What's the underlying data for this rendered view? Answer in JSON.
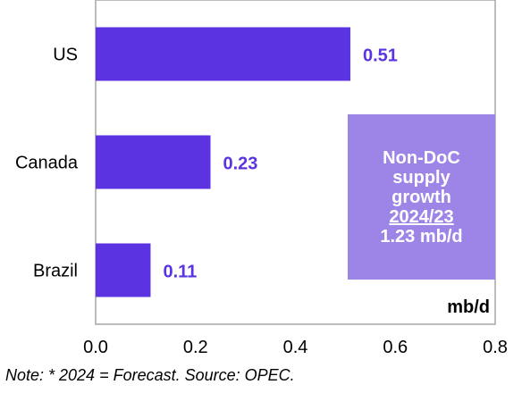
{
  "chart_data": {
    "type": "bar",
    "orientation": "horizontal",
    "categories": [
      "US",
      "Canada",
      "Brazil"
    ],
    "values": [
      0.51,
      0.23,
      0.11
    ],
    "data_labels": [
      "0.51",
      "0.23",
      "0.11"
    ],
    "xlim": [
      0,
      0.8
    ],
    "xticks": [
      "0.0",
      "0.2",
      "0.4",
      "0.6",
      "0.8"
    ],
    "unit_label": "mb/d",
    "grid": false,
    "bar_color": "#5b33e0",
    "label_color": "#5b33e0"
  },
  "callout": {
    "lines": [
      "Non-DoC",
      "supply",
      "growth",
      "2024/23",
      "1.23 mb/d"
    ],
    "background": "#9d85e8"
  },
  "note": "Note: * 2024 = Forecast. Source: OPEC."
}
